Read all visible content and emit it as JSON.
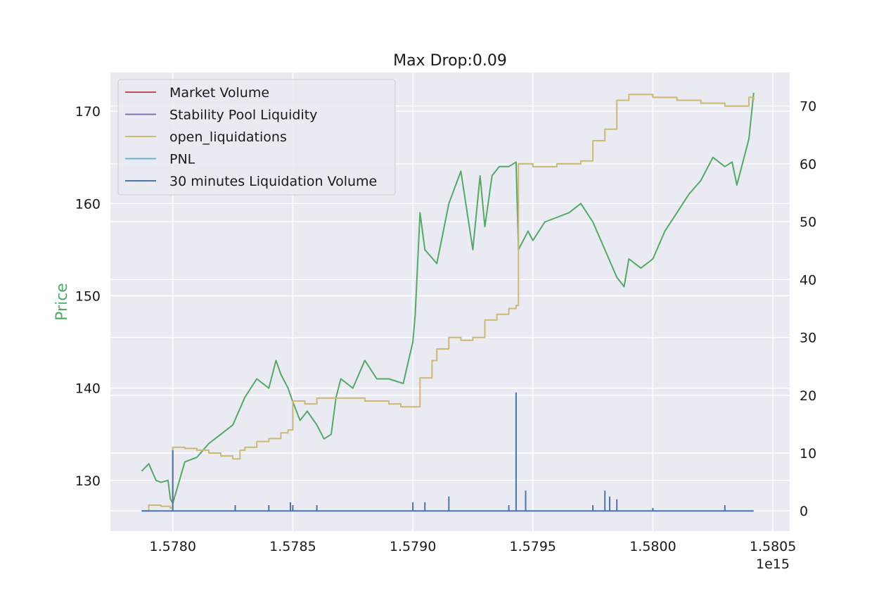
{
  "chart_data": {
    "type": "line",
    "title": "Max Drop:0.09",
    "ylabel": "Price",
    "ylabel_color": "#55a868",
    "x_offset_label": "1e15",
    "xlim": [
      1.57774,
      1.58057
    ],
    "ylim_left": [
      124.5,
      174.2
    ],
    "ylim_right": [
      -3.5,
      75.8
    ],
    "x_ticks": [
      1.578,
      1.5785,
      1.579,
      1.5795,
      1.58,
      1.5805
    ],
    "x_tick_labels": [
      "1.5780",
      "1.5785",
      "1.5790",
      "1.5795",
      "1.5800",
      "1.5805"
    ],
    "y_left_ticks": [
      130,
      140,
      150,
      160,
      170
    ],
    "y_left_tick_labels": [
      "130",
      "140",
      "150",
      "160",
      "170"
    ],
    "y_right_ticks": [
      0,
      10,
      20,
      30,
      40,
      50,
      60,
      70
    ],
    "y_right_tick_labels": [
      "0",
      "10",
      "20",
      "30",
      "40",
      "50",
      "60",
      "70"
    ],
    "grid": true,
    "legend_position": "top-left",
    "legend": [
      {
        "name": "Market Volume",
        "color": "#c44e52"
      },
      {
        "name": "Stability Pool Liquidity",
        "color": "#8172b3"
      },
      {
        "name": "open_liquidations",
        "color": "#ccb974"
      },
      {
        "name": "PNL",
        "color": "#64b5cd"
      },
      {
        "name": "30 minutes Liquidation Volume",
        "color": "#4c72b0"
      }
    ],
    "series": [
      {
        "color": "#55a868",
        "axis": "left",
        "x": [
          1.57787,
          1.5779,
          1.57793,
          1.57795,
          1.57798,
          1.57799,
          1.578,
          1.57805,
          1.5781,
          1.57815,
          1.5782,
          1.57825,
          1.5783,
          1.57835,
          1.5784,
          1.57843,
          1.57845,
          1.57848,
          1.5785,
          1.57853,
          1.57856,
          1.5786,
          1.57863,
          1.57866,
          1.57868,
          1.5787,
          1.57875,
          1.5788,
          1.57885,
          1.5789,
          1.57896,
          1.579,
          1.57901,
          1.57903,
          1.57905,
          1.5791,
          1.57915,
          1.5792,
          1.57925,
          1.57928,
          1.5793,
          1.57933,
          1.57936,
          1.5794,
          1.57943,
          1.57944,
          1.57948,
          1.5795,
          1.57955,
          1.5796,
          1.57965,
          1.5797,
          1.57975,
          1.5798,
          1.57985,
          1.57988,
          1.5799,
          1.57995,
          1.58,
          1.58005,
          1.5801,
          1.58015,
          1.5802,
          1.58025,
          1.5803,
          1.58033,
          1.58035,
          1.58038,
          1.5804,
          1.58042
        ],
        "y": [
          131.0,
          131.8,
          130.0,
          129.8,
          130.0,
          128.0,
          127.5,
          132.0,
          132.5,
          134.0,
          135.0,
          136.0,
          139.0,
          141.0,
          140.0,
          143.0,
          141.5,
          140.0,
          138.5,
          136.5,
          137.5,
          136.0,
          134.5,
          135.0,
          139.0,
          141.0,
          140.0,
          143.0,
          141.0,
          141.0,
          140.5,
          145.0,
          148.0,
          159.0,
          155.0,
          153.5,
          160.0,
          163.5,
          155.0,
          163.0,
          157.5,
          163.0,
          164.0,
          164.0,
          164.5,
          155.0,
          157.0,
          156.0,
          158.0,
          158.5,
          159.0,
          160.0,
          158.0,
          155.0,
          152.0,
          151.0,
          154.0,
          153.0,
          154.0,
          157.0,
          159.0,
          161.0,
          162.5,
          165.0,
          164.0,
          164.5,
          162.0,
          165.0,
          167.0,
          172.0
        ]
      },
      {
        "color": "#ccb974",
        "axis": "right",
        "step": true,
        "x": [
          1.57787,
          1.5779,
          1.57795,
          1.57799,
          1.578,
          1.57805,
          1.5781,
          1.57815,
          1.5782,
          1.57825,
          1.57828,
          1.5783,
          1.57835,
          1.5784,
          1.57845,
          1.57848,
          1.5785,
          1.57855,
          1.5786,
          1.5787,
          1.5788,
          1.5789,
          1.57895,
          1.579,
          1.57903,
          1.57908,
          1.5791,
          1.57915,
          1.5792,
          1.57925,
          1.5793,
          1.57935,
          1.5794,
          1.57943,
          1.57944,
          1.5795,
          1.5796,
          1.5797,
          1.57975,
          1.5798,
          1.57985,
          1.5799,
          1.58,
          1.5801,
          1.5802,
          1.5803,
          1.5804,
          1.58042
        ],
        "y": [
          0.0,
          1.0,
          0.8,
          0.5,
          11.0,
          10.8,
          10.5,
          10.0,
          9.5,
          9.0,
          10.5,
          11.0,
          12.0,
          12.5,
          13.5,
          14.0,
          19.0,
          18.5,
          19.5,
          19.5,
          19.0,
          18.5,
          18.0,
          18.0,
          23.0,
          26.0,
          28.0,
          30.0,
          29.5,
          30.0,
          33.0,
          34.0,
          35.0,
          35.5,
          60.0,
          59.5,
          60.0,
          60.5,
          64.0,
          66.0,
          71.0,
          72.0,
          71.5,
          71.0,
          70.5,
          70.0,
          71.5,
          71.0
        ]
      },
      {
        "color": "#4c72b0",
        "axis": "right",
        "baseline": 0.0,
        "x": [
          1.57787,
          1.57799,
          1.578,
          1.57826,
          1.5784,
          1.57849,
          1.5785,
          1.5786,
          1.579,
          1.57905,
          1.57915,
          1.5794,
          1.57943,
          1.57947,
          1.57975,
          1.5798,
          1.57982,
          1.57985,
          1.58,
          1.5803,
          1.58042
        ],
        "y": [
          0.0,
          0.0,
          10.5,
          1.0,
          1.0,
          1.5,
          1.0,
          1.0,
          1.5,
          1.5,
          2.5,
          1.0,
          20.5,
          3.5,
          1.0,
          3.5,
          2.5,
          2.0,
          0.5,
          1.0,
          0.0
        ]
      }
    ]
  }
}
